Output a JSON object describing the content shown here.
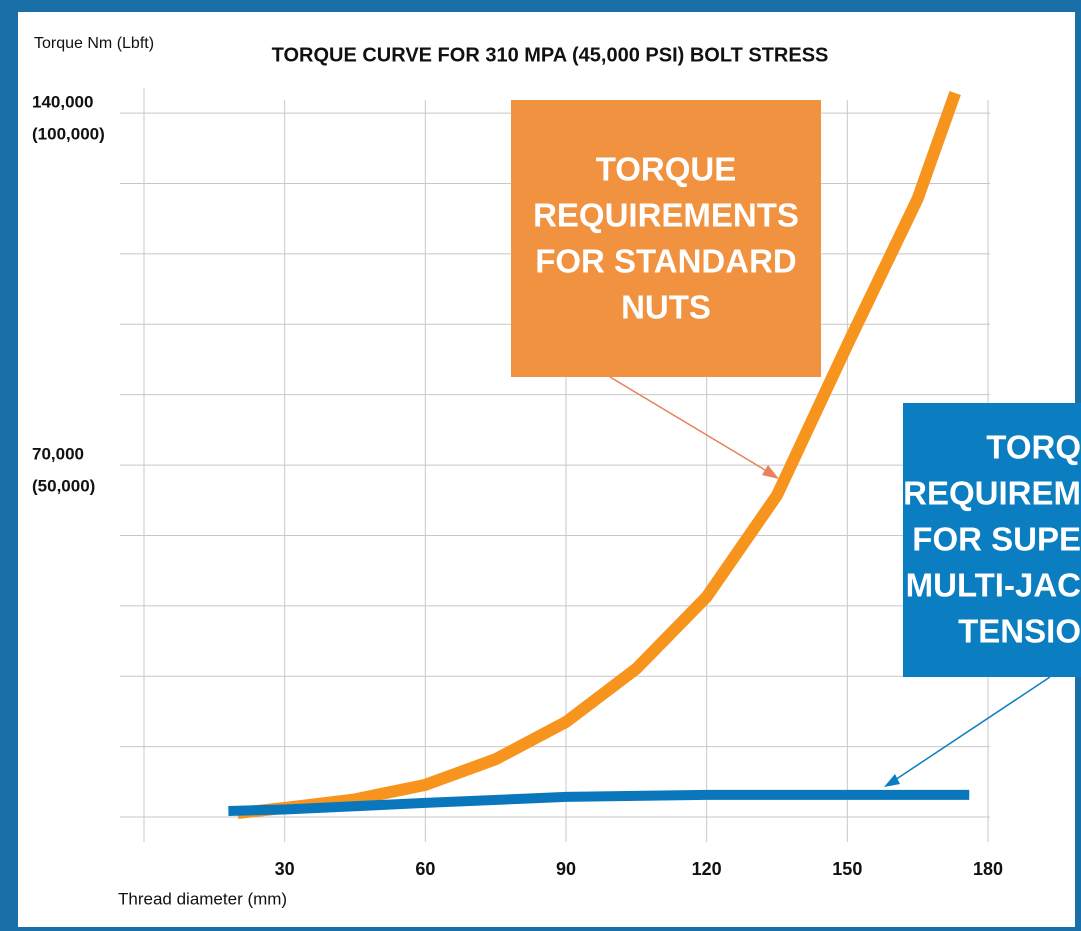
{
  "chart_data": {
    "type": "line",
    "title": "TORQUE CURVE FOR 310 MPA (45,000 PSI) BOLT STRESS",
    "y_label": "Torque Nm (Lbft)",
    "x_label": "Thread diameter (mm)",
    "xlim": [
      0,
      180
    ],
    "xticks": [
      30,
      60,
      90,
      120,
      150,
      180
    ],
    "ylim": [
      0,
      145000
    ],
    "yticks": [
      {
        "value": 70000,
        "label": "70,000",
        "alt_label": "(50,000)"
      },
      {
        "value": 140000,
        "label": "140,000",
        "alt_label": "(100,000)"
      }
    ],
    "ygrid": [
      0,
      14000,
      28000,
      42000,
      56000,
      70000,
      84000,
      98000,
      112000,
      126000,
      140000
    ],
    "grid": true,
    "series": [
      {
        "color": "#f7941d",
        "x": [
          20,
          30,
          45,
          60,
          75,
          90,
          105,
          120,
          135,
          150,
          165,
          173
        ],
        "values": [
          800,
          1800,
          3500,
          6400,
          11500,
          18900,
          29500,
          43800,
          64000,
          93900,
          123000,
          144000
        ]
      },
      {
        "color": "#0a77bd",
        "x": [
          18,
          30,
          60,
          90,
          120,
          150,
          176
        ],
        "values": [
          1200,
          1500,
          2800,
          4000,
          4400,
          4400,
          4400
        ]
      }
    ],
    "annotations": [
      {
        "color": "#f09240",
        "lines": [
          "TORQUE",
          "REQUIREMENTS",
          "FOR STANDARD",
          "NUTS"
        ]
      },
      {
        "color": "#0b7dc1",
        "lines": [
          "TORQ",
          "REQUIREM",
          "FOR SUPE",
          "MULTI-JAC",
          "TENSIO"
        ]
      }
    ]
  }
}
